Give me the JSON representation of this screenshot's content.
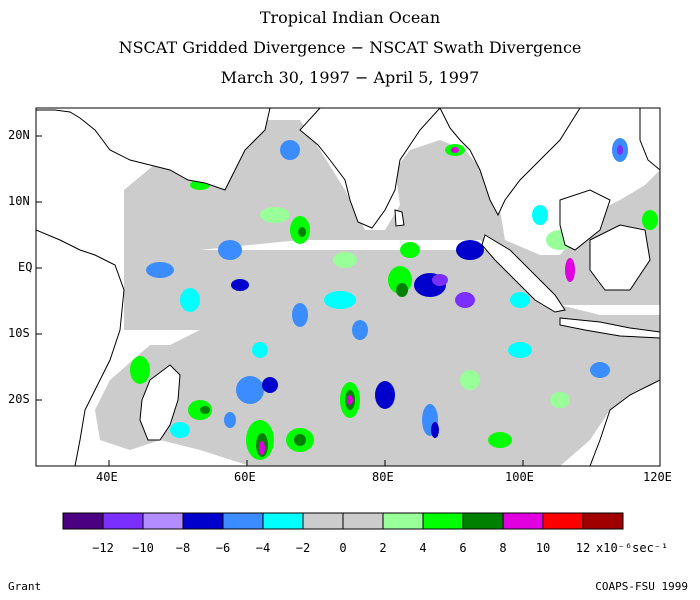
{
  "title": {
    "line1": "Tropical Indian Ocean",
    "line2": "NSCAT Gridded Divergence − NSCAT Swath Divergence",
    "line3": "March 30, 1997 − April 5, 1997"
  },
  "map": {
    "lat_labels": [
      "20N",
      "10N",
      "EQ",
      "10S",
      "20S"
    ],
    "lon_labels": [
      "40E",
      "60E",
      "80E",
      "100E",
      "120E"
    ],
    "land_color": "#ffffff",
    "coast_color": "#000000"
  },
  "colorbar": {
    "colors": [
      "#4b0082",
      "#7b2fff",
      "#b38cff",
      "#0000cd",
      "#3b8cff",
      "#00ffff",
      "#cccccc",
      "#cccccc",
      "#99ff99",
      "#00ff00",
      "#008000",
      "#e000e0",
      "#ff0000",
      "#a00000"
    ],
    "tick_labels": [
      "−12",
      "−10",
      "−8",
      "−6",
      "−4",
      "−2",
      "0",
      "2",
      "4",
      "6",
      "8",
      "10",
      "12"
    ],
    "units": "x10⁻⁶sec⁻¹"
  },
  "footer": {
    "left": "Grant",
    "right": "COAPS-FSU 1999"
  }
}
